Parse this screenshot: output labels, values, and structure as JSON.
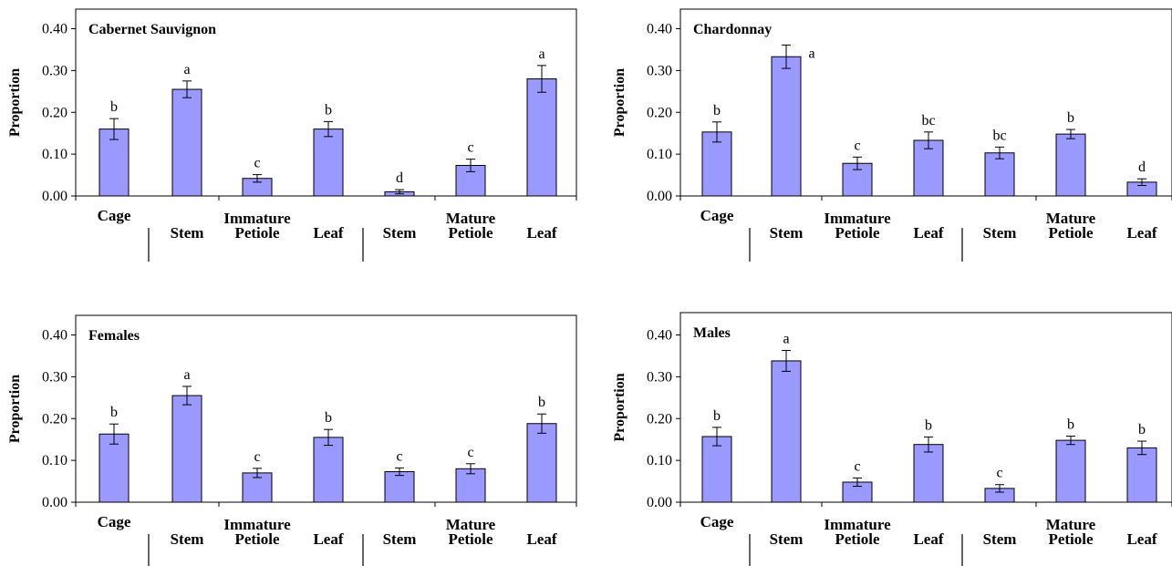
{
  "colors": {
    "bar": "#9999ff",
    "bar_stroke": "#000000",
    "axis": "#000000"
  },
  "chart_data": [
    {
      "type": "bar",
      "title": "Cabernet Sauvignon",
      "ylabel": "Proportion",
      "ylim": [
        0,
        0.4
      ],
      "yticks": [
        "0.00",
        "0.10",
        "0.20",
        "0.30",
        "0.40"
      ],
      "categories": [
        "Cage",
        "Stem",
        "Petiole",
        "Leaf",
        "Stem",
        "Petiole",
        "Leaf"
      ],
      "groups": [
        "Immature",
        "Mature"
      ],
      "values": [
        0.16,
        0.255,
        0.042,
        0.16,
        0.01,
        0.073,
        0.28
      ],
      "errors": [
        0.025,
        0.02,
        0.009,
        0.018,
        0.005,
        0.015,
        0.032
      ],
      "letters": [
        "b",
        "a",
        "c",
        "b",
        "d",
        "c",
        "a"
      ]
    },
    {
      "type": "bar",
      "title": "Chardonnay",
      "ylabel": "Proportion",
      "ylim": [
        0,
        0.4
      ],
      "yticks": [
        "0.00",
        "0.10",
        "0.20",
        "0.30",
        "0.40"
      ],
      "categories": [
        "Cage",
        "Stem",
        "Petiole",
        "Leaf",
        "Stem",
        "Petiole",
        "Leaf"
      ],
      "groups": [
        "Immature",
        "Mature"
      ],
      "values": [
        0.153,
        0.333,
        0.078,
        0.133,
        0.103,
        0.148,
        0.033
      ],
      "errors": [
        0.024,
        0.028,
        0.015,
        0.02,
        0.014,
        0.011,
        0.008
      ],
      "letters": [
        "b",
        "a",
        "c",
        "bc",
        "bc",
        "b",
        "d"
      ]
    },
    {
      "type": "bar",
      "title": "Females",
      "ylabel": "Proportion",
      "ylim": [
        0,
        0.4
      ],
      "yticks": [
        "0.00",
        "0.10",
        "0.20",
        "0.30",
        "0.40"
      ],
      "categories": [
        "Cage",
        "Stem",
        "Petiole",
        "Leaf",
        "Stem",
        "Petiole",
        "Leaf"
      ],
      "groups": [
        "Immature",
        "Mature"
      ],
      "values": [
        0.163,
        0.255,
        0.07,
        0.155,
        0.073,
        0.08,
        0.188
      ],
      "errors": [
        0.024,
        0.022,
        0.011,
        0.019,
        0.009,
        0.012,
        0.023
      ],
      "letters": [
        "b",
        "a",
        "c",
        "b",
        "c",
        "c",
        "b"
      ]
    },
    {
      "type": "bar",
      "title": "Males",
      "ylabel": "Proportion",
      "ylim": [
        0,
        0.4
      ],
      "yticks": [
        "0.00",
        "0.10",
        "0.20",
        "0.30",
        "0.40"
      ],
      "categories": [
        "Cage",
        "Stem",
        "Petiole",
        "Leaf",
        "Stem",
        "Petiole",
        "Leaf"
      ],
      "groups": [
        "Immature",
        "Mature"
      ],
      "values": [
        0.157,
        0.338,
        0.048,
        0.138,
        0.033,
        0.148,
        0.13
      ],
      "errors": [
        0.022,
        0.025,
        0.01,
        0.018,
        0.009,
        0.01,
        0.016
      ],
      "letters": [
        "b",
        "a",
        "c",
        "b",
        "c",
        "b",
        "b"
      ]
    }
  ]
}
